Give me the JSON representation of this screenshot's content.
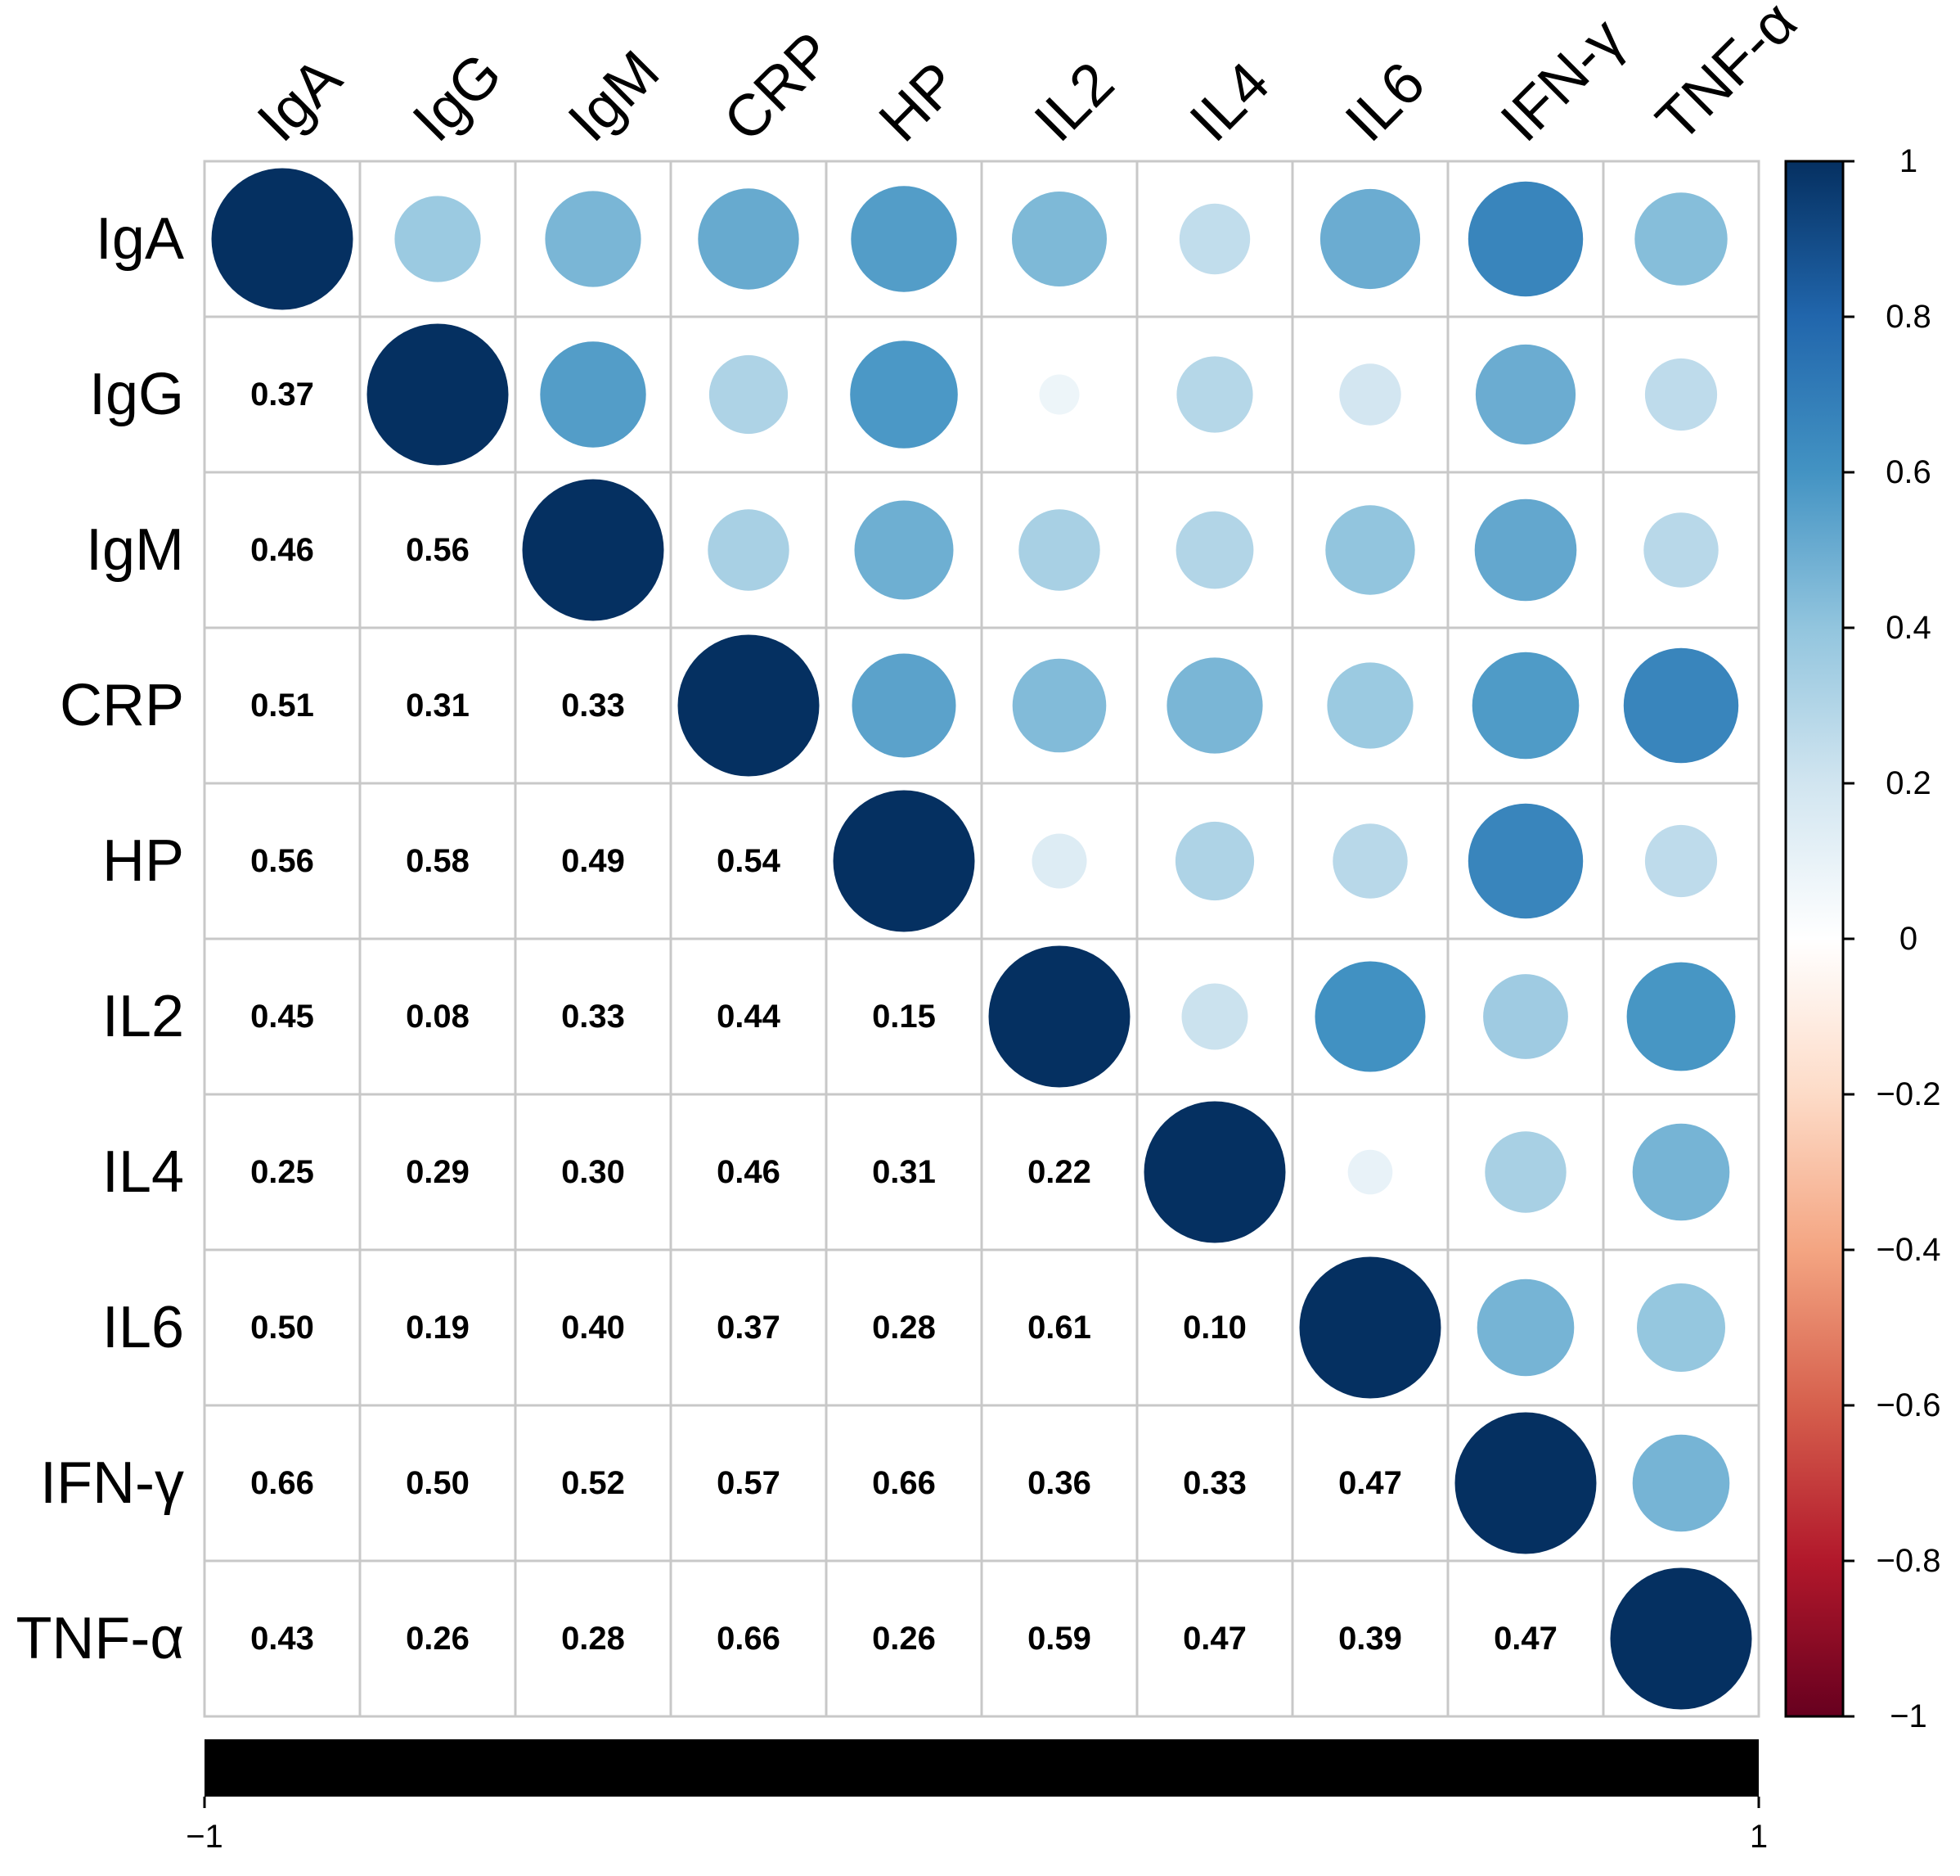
{
  "chart_data": {
    "type": "heatmap",
    "variables": [
      "IgA",
      "IgG",
      "IgM",
      "CRP",
      "HP",
      "IL2",
      "IL4",
      "IL6",
      "IFN-γ",
      "TNF-α"
    ],
    "matrix": [
      [
        1.0,
        0.37,
        0.46,
        0.51,
        0.56,
        0.45,
        0.25,
        0.5,
        0.66,
        0.43
      ],
      [
        0.37,
        1.0,
        0.56,
        0.31,
        0.58,
        0.08,
        0.29,
        0.19,
        0.5,
        0.26
      ],
      [
        0.46,
        0.56,
        1.0,
        0.33,
        0.49,
        0.33,
        0.3,
        0.4,
        0.52,
        0.28
      ],
      [
        0.51,
        0.31,
        0.33,
        1.0,
        0.54,
        0.44,
        0.46,
        0.37,
        0.57,
        0.66
      ],
      [
        0.56,
        0.58,
        0.49,
        0.54,
        1.0,
        0.15,
        0.31,
        0.28,
        0.66,
        0.26
      ],
      [
        0.45,
        0.08,
        0.33,
        0.44,
        0.15,
        1.0,
        0.22,
        0.61,
        0.36,
        0.59
      ],
      [
        0.25,
        0.29,
        0.3,
        0.46,
        0.31,
        0.22,
        1.0,
        0.1,
        0.33,
        0.47
      ],
      [
        0.5,
        0.19,
        0.4,
        0.37,
        0.28,
        0.61,
        0.1,
        1.0,
        0.47,
        0.39
      ],
      [
        0.66,
        0.5,
        0.52,
        0.57,
        0.66,
        0.36,
        0.33,
        0.47,
        1.0,
        0.47
      ],
      [
        0.43,
        0.26,
        0.28,
        0.66,
        0.26,
        0.59,
        0.47,
        0.39,
        0.47,
        1.0
      ]
    ],
    "lower_triangle": "numbers",
    "upper_triangle": "circles",
    "diagonal": "circles",
    "colorbar": {
      "range": [
        -1,
        1
      ],
      "ticks": [
        1,
        0.8,
        0.6,
        0.4,
        0.2,
        0,
        -0.2,
        -0.4,
        -0.6,
        -0.8,
        -1
      ],
      "tick_labels": [
        "1",
        "0.8",
        "0.6",
        "0.4",
        "0.2",
        "0",
        "−0.2",
        "−0.4",
        "−0.6",
        "−0.8",
        "−1"
      ],
      "placement": "right"
    },
    "bottom_bar": {
      "range_labels": [
        "−1",
        "1"
      ],
      "color": "#000000"
    },
    "palette": {
      "negative_end": "#67001f",
      "mid": "#ffffff",
      "positive_end": "#053061",
      "stops": [
        "#67001f",
        "#b2182b",
        "#d6604d",
        "#f4a582",
        "#fddbc7",
        "#ffffff",
        "#d1e5f0",
        "#92c5de",
        "#4393c3",
        "#2166ac",
        "#053061"
      ]
    }
  }
}
